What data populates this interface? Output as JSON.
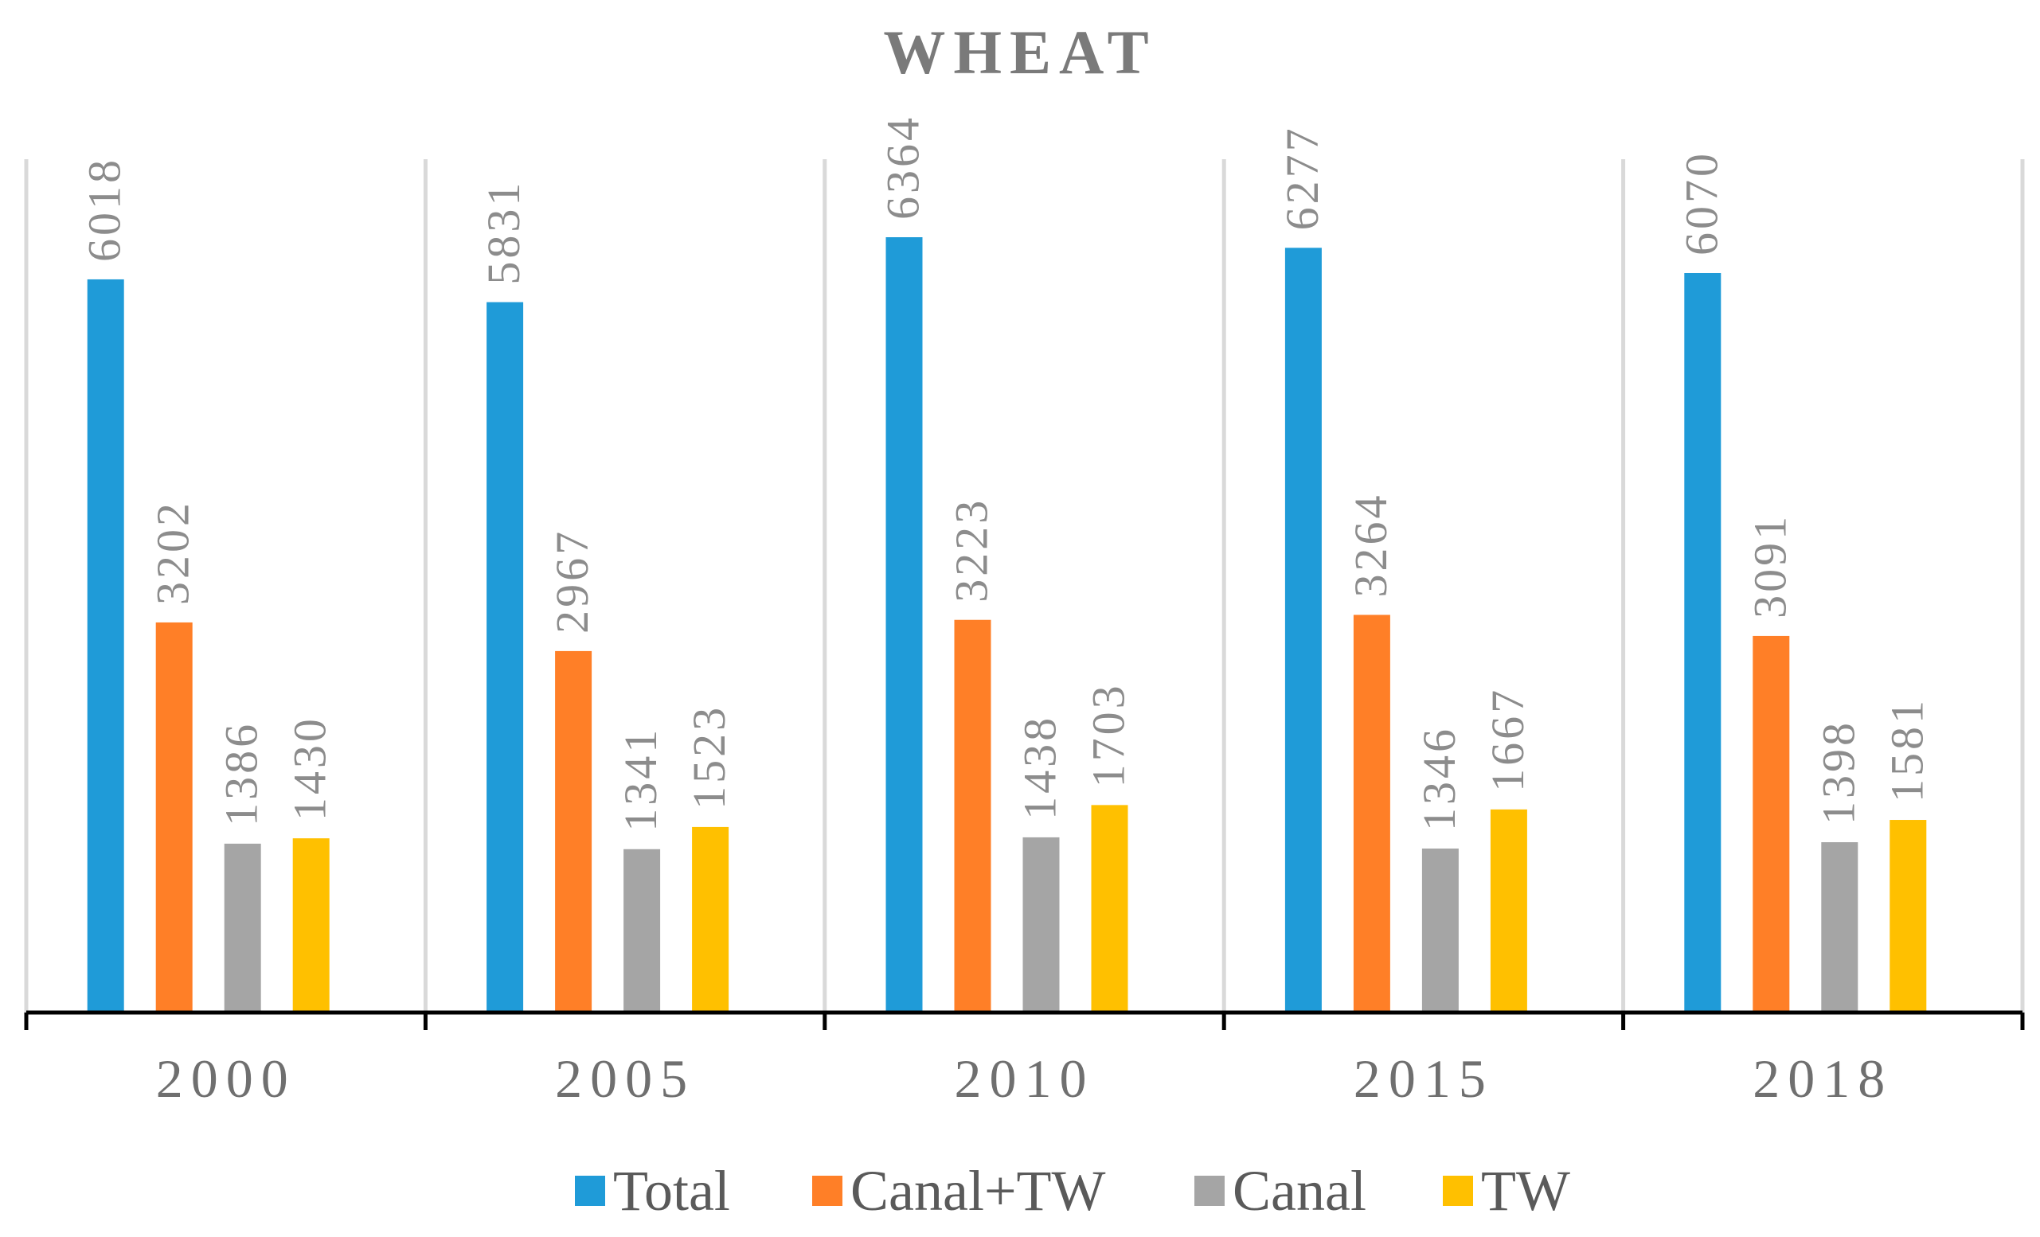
{
  "chart_data": {
    "type": "bar",
    "title": "WHEAT",
    "xlabel": "",
    "ylabel": "",
    "categories": [
      "2000",
      "2005",
      "2010",
      "2015",
      "2018"
    ],
    "series": [
      {
        "name": "Total",
        "color": "#1f9bd8",
        "values": [
          6018,
          5831,
          6364,
          6277,
          6070
        ]
      },
      {
        "name": "Canal+TW",
        "color": "#ff7f27",
        "values": [
          3202,
          2967,
          3223,
          3264,
          3091
        ]
      },
      {
        "name": "Canal",
        "color": "#a5a5a5",
        "values": [
          1386,
          1341,
          1438,
          1346,
          1398
        ]
      },
      {
        "name": "TW",
        "color": "#ffc000",
        "values": [
          1430,
          1523,
          1703,
          1667,
          1581
        ]
      }
    ],
    "ylim": [
      0,
      7000
    ],
    "grid": "vertical-category-separators",
    "legend_position": "bottom",
    "data_labels": true
  }
}
